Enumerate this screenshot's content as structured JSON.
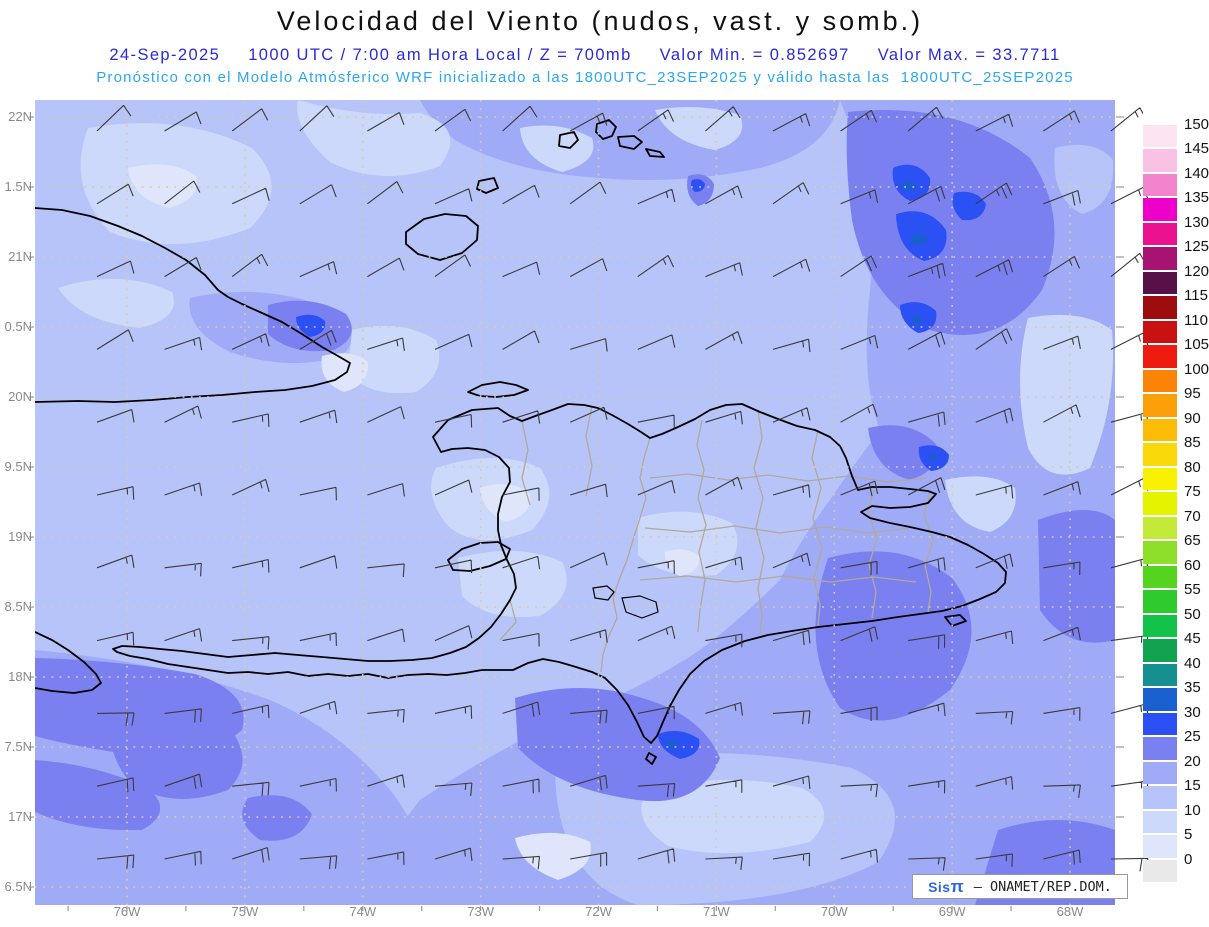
{
  "header": {
    "title": "Velocidad del Viento (nudos, vast. y somb.)",
    "line1": {
      "date": "24-Sep-2025",
      "time": "1000 UTC / 7:00 am Hora Local / Z = 700mb",
      "min": "Valor Min. = 0.852697",
      "max": "Valor Max. = 33.7711",
      "color": "#2a2ad9"
    },
    "line2": {
      "text": "Pronóstico con el Modelo Atmósferico WRF inicializado a las 1800UTC_23SEP2025 y válido hasta las  1800UTC_25SEP2025",
      "color": "#2ba7f2"
    }
  },
  "map": {
    "lat_labels": [
      "22N",
      "1.5N",
      "21N",
      "0.5N",
      "20N",
      "9.5N",
      "19N",
      "8.5N",
      "18N",
      "7.5N",
      "17N",
      "6.5N"
    ],
    "lon_labels": [
      "76W",
      "75W",
      "74W",
      "73W",
      "72W",
      "71W",
      "70W",
      "69W",
      "68W"
    ],
    "axis_color": "#8a8a8a",
    "grid_color": "#d9cba4",
    "tick_color": "#999999",
    "coast_color": "#000000",
    "province_border_color": "#b3a897",
    "band_colors": {
      "b0005": "#dfe5fa",
      "b0510": "#cdd9fa",
      "b1015": "#b6c4f9",
      "b1520": "#9fabf7",
      "b2025": "#7b80f1",
      "b2530": "#2b50f4",
      "b3035": "#1a5fd0"
    }
  },
  "colorbar": {
    "labels": [
      "150",
      "145",
      "140",
      "135",
      "130",
      "125",
      "120",
      "115",
      "110",
      "105",
      "100",
      "95",
      "90",
      "85",
      "80",
      "75",
      "70",
      "65",
      "60",
      "55",
      "50",
      "45",
      "40",
      "35",
      "30",
      "25",
      "20",
      "15",
      "10",
      "5",
      "0"
    ],
    "colors": [
      "#ffffff",
      "#fde4f1",
      "#f9c1e4",
      "#f283cd",
      "#ee00cb",
      "#e9118e",
      "#a61371",
      "#571048",
      "#9e0d0d",
      "#c81111",
      "#ef1a10",
      "#fb8407",
      "#fba009",
      "#fbbc08",
      "#f9d90a",
      "#f8f202",
      "#e4f400",
      "#c3ea39",
      "#8edf2a",
      "#55d41f",
      "#2fcb2d",
      "#13c248",
      "#13a24f",
      "#168f90",
      "#1a60d0",
      "#2b50f4",
      "#7b80f1",
      "#9fabf7",
      "#b6c4f9",
      "#cdd9fa",
      "#dfe5fa",
      "#e9e9e9"
    ],
    "label_color": "#151515"
  },
  "wind": {
    "barb_color": "#3a3a3a",
    "units": "nudos",
    "speeds": [
      [
        10,
        10,
        10,
        10,
        10,
        10,
        10,
        15,
        15,
        15,
        15,
        15,
        15,
        15,
        15,
        15
      ],
      [
        10,
        10,
        10,
        10,
        10,
        10,
        10,
        10,
        15,
        15,
        15,
        15,
        20,
        25,
        20,
        15
      ],
      [
        10,
        10,
        15,
        15,
        10,
        10,
        10,
        10,
        15,
        15,
        15,
        20,
        25,
        25,
        15,
        15
      ],
      [
        10,
        15,
        15,
        20,
        15,
        10,
        10,
        10,
        10,
        15,
        15,
        15,
        20,
        20,
        15,
        15
      ],
      [
        10,
        15,
        15,
        15,
        10,
        10,
        10,
        10,
        10,
        15,
        15,
        15,
        20,
        20,
        15,
        15
      ],
      [
        15,
        15,
        15,
        10,
        10,
        10,
        10,
        10,
        10,
        15,
        15,
        20,
        20,
        15,
        15,
        15
      ],
      [
        15,
        15,
        15,
        10,
        10,
        10,
        10,
        10,
        15,
        15,
        15,
        20,
        20,
        20,
        15,
        15
      ],
      [
        15,
        15,
        15,
        15,
        10,
        10,
        10,
        15,
        15,
        15,
        20,
        20,
        20,
        15,
        15,
        15
      ],
      [
        20,
        20,
        15,
        15,
        15,
        15,
        20,
        20,
        15,
        15,
        20,
        20,
        15,
        15,
        15,
        15
      ],
      [
        20,
        20,
        20,
        15,
        15,
        15,
        20,
        20,
        20,
        15,
        15,
        15,
        15,
        15,
        15,
        15
      ],
      [
        20,
        20,
        20,
        20,
        15,
        15,
        15,
        20,
        20,
        15,
        15,
        15,
        15,
        15,
        20,
        20
      ]
    ],
    "base_dirs": [
      55,
      60,
      60,
      65,
      70,
      70,
      75,
      75,
      80,
      80,
      80
    ]
  },
  "watermark": {
    "brand": "Sis",
    "pi": "π",
    "rest": " – ONAMET/REP.DOM.",
    "brand_color": "#2f66e0"
  }
}
